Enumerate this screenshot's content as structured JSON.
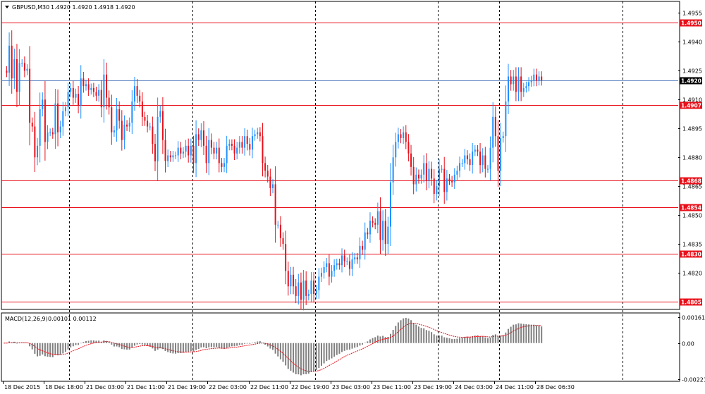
{
  "chart_header": {
    "symbol_text": "GBPUSD,M30",
    "ohlc_text": "1.4920 1.4920 1.4918 1.4920"
  },
  "macd_header": {
    "label": "MACD(12,26,9)",
    "values_text": "0.00101 0.00112"
  },
  "colors": {
    "bull": "#1e90ff",
    "bear": "#e8101a",
    "level_line": "#e8101a",
    "current_line": "#6a8fc8",
    "grid": "#000000",
    "macd_hist": "#808080",
    "macd_signal": "#e8101a",
    "axis_text": "#000000"
  },
  "chart_data": [
    {
      "type": "candlestick",
      "symbol": "GBPUSD",
      "timeframe": "M30",
      "ylim": [
        1.4801,
        1.4961
      ],
      "y_ticks": [
        1.4955,
        1.494,
        1.4925,
        1.491,
        1.4895,
        1.488,
        1.4865,
        1.485,
        1.4835,
        1.482
      ],
      "y_tick_labels": [
        "1.4955",
        "1.4940",
        "1.4925",
        "1.4910",
        "1.4895",
        "1.4880",
        "1.4865",
        "1.4850",
        "1.4835",
        "1.4820"
      ],
      "x_tick_labels": [
        "18 Dec 2015",
        "18 Dec 18:00",
        "21 Dec 03:00",
        "21 Dec 11:00",
        "21 Dec 19:00",
        "22 Dec 03:00",
        "22 Dec 11:00",
        "22 Dec 19:00",
        "23 Dec 03:00",
        "23 Dec 11:00",
        "23 Dec 19:00",
        "24 Dec 03:00",
        "24 Dec 11:00",
        "28 Dec 06:30"
      ],
      "x_tick_index": [
        0,
        16,
        32,
        48,
        64,
        80,
        96,
        112,
        128,
        144,
        160,
        176,
        192,
        208
      ],
      "vertical_grid_index": [
        26,
        74,
        122,
        170,
        194,
        242
      ],
      "levels": [
        {
          "value": 1.495,
          "label": "1.4950"
        },
        {
          "value": 1.4907,
          "label": "1.4907"
        },
        {
          "value": 1.4868,
          "label": "1.4868"
        },
        {
          "value": 1.4854,
          "label": "1.4854"
        },
        {
          "value": 1.483,
          "label": "1.4830"
        },
        {
          "value": 1.4805,
          "label": "1.4805"
        }
      ],
      "current_price": {
        "value": 1.492,
        "label": "1.4920"
      },
      "close": [
        1.4925,
        1.4924,
        1.4938,
        1.4921,
        1.4931,
        1.4914,
        1.4929,
        1.4929,
        1.4925,
        1.4926,
        1.4898,
        1.4896,
        1.488,
        1.4886,
        1.4905,
        1.491,
        1.4888,
        1.4893,
        1.4893,
        1.4892,
        1.4908,
        1.4893,
        1.4896,
        1.4904,
        1.4906,
        1.4914,
        1.4916,
        1.4911,
        1.4913,
        1.4907,
        1.4921,
        1.4917,
        1.4918,
        1.4915,
        1.4916,
        1.4914,
        1.4912,
        1.4915,
        1.4906,
        1.4923,
        1.4911,
        1.4906,
        1.4893,
        1.4894,
        1.4905,
        1.4899,
        1.4889,
        1.4897,
        1.4896,
        1.4898,
        1.4909,
        1.4917,
        1.4912,
        1.4909,
        1.4901,
        1.4899,
        1.4896,
        1.4896,
        1.4887,
        1.4878,
        1.4901,
        1.4904,
        1.4889,
        1.4878,
        1.4881,
        1.488,
        1.4881,
        1.4881,
        1.4885,
        1.4882,
        1.4883,
        1.4886,
        1.4881,
        1.4886,
        1.4877,
        1.4892,
        1.4889,
        1.4894,
        1.4886,
        1.4877,
        1.4889,
        1.4885,
        1.4882,
        1.4885,
        1.4877,
        1.4875,
        1.4877,
        1.4886,
        1.4887,
        1.4886,
        1.4882,
        1.4885,
        1.4888,
        1.4885,
        1.4891,
        1.4887,
        1.4884,
        1.4891,
        1.4892,
        1.4893,
        1.4891,
        1.4877,
        1.4873,
        1.487,
        1.4864,
        1.4866,
        1.4845,
        1.4845,
        1.4838,
        1.4835,
        1.4821,
        1.4813,
        1.4819,
        1.4813,
        1.4808,
        1.4815,
        1.4806,
        1.4816,
        1.4808,
        1.4809,
        1.4816,
        1.4809,
        1.4811,
        1.4818,
        1.482,
        1.4823,
        1.4825,
        1.4818,
        1.4821,
        1.4824,
        1.4825,
        1.4824,
        1.4829,
        1.4826,
        1.4826,
        1.4822,
        1.4827,
        1.4828,
        1.4827,
        1.4834,
        1.4832,
        1.4841,
        1.484,
        1.4847,
        1.4846,
        1.4845,
        1.4852,
        1.4837,
        1.4847,
        1.4835,
        1.4844,
        1.4867,
        1.488,
        1.4888,
        1.4892,
        1.489,
        1.4893,
        1.4888,
        1.4882,
        1.4875,
        1.4866,
        1.4871,
        1.4869,
        1.4871,
        1.4877,
        1.4868,
        1.4874,
        1.4869,
        1.4861,
        1.4865,
        1.4874,
        1.4874,
        1.4862,
        1.4869,
        1.4868,
        1.4867,
        1.4871,
        1.4873,
        1.4877,
        1.4877,
        1.4881,
        1.4879,
        1.4876,
        1.4883,
        1.4884,
        1.4883,
        1.4876,
        1.4881,
        1.4874,
        1.4874,
        1.4885,
        1.4901,
        1.4891,
        1.4873,
        1.489,
        1.4891,
        1.4909,
        1.4922,
        1.4918,
        1.4922,
        1.4914,
        1.4922,
        1.4914,
        1.4916,
        1.4917,
        1.4919,
        1.492,
        1.4923,
        1.492,
        1.4922,
        1.492
      ],
      "series": [
        {
          "name": "MACD(12,26,9)",
          "kind": "histogram"
        },
        {
          "name": "Signal",
          "kind": "line"
        }
      ]
    },
    {
      "type": "histogram+line",
      "indicator": "MACD(12,26,9)",
      "params": [
        12,
        26,
        9
      ],
      "last_macd": 0.00101,
      "last_signal": 0.00112,
      "ylim": [
        -0.00235,
        0.00185
      ],
      "y_ticks": [
        0.00161,
        0.0,
        -0.00221
      ],
      "y_tick_labels": [
        "0.00161",
        "0.00",
        "-0.00221"
      ]
    }
  ]
}
